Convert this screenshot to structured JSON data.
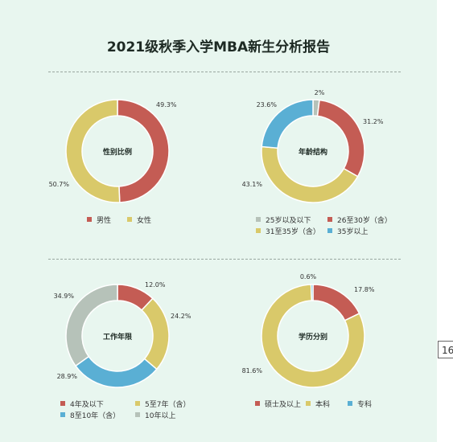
{
  "title": "2021级秋季入学MBA新生分析报告",
  "side_box_text": "16",
  "chart_data": [
    {
      "type": "pie",
      "title": "性别比例",
      "slices": [
        {
          "label": "男性",
          "value": 49.3,
          "display": "49.3%",
          "color": "#c45c54"
        },
        {
          "label": "女性",
          "value": 50.7,
          "display": "50.7%",
          "color": "#d9c96a"
        }
      ]
    },
    {
      "type": "pie",
      "title": "年龄结构",
      "slices": [
        {
          "label": "25岁以及以下",
          "value": 2,
          "display": "2%",
          "color": "#b6c2b9"
        },
        {
          "label": "26至30岁（含）",
          "value": 31.2,
          "display": "31.2%",
          "color": "#c45c54"
        },
        {
          "label": "31至35岁（含）",
          "value": 43.1,
          "display": "43.1%",
          "color": "#d9c96a"
        },
        {
          "label": "35岁以上",
          "value": 23.6,
          "display": "23.6%",
          "color": "#5aafd4"
        }
      ]
    },
    {
      "type": "pie",
      "title": "工作年限",
      "slices": [
        {
          "label": "4年及以下",
          "value": 12.0,
          "display": "12.0%",
          "color": "#c45c54"
        },
        {
          "label": "5至7年（含）",
          "value": 24.2,
          "display": "24.2%",
          "color": "#d9c96a"
        },
        {
          "label": "8至10年（含）",
          "value": 28.9,
          "display": "28.9%",
          "color": "#5aafd4"
        },
        {
          "label": "10年以上",
          "value": 34.9,
          "display": "34.9%",
          "color": "#b6c2b9"
        }
      ]
    },
    {
      "type": "pie",
      "title": "学历分别",
      "slices": [
        {
          "label": "硕士及以上",
          "value": 17.8,
          "display": "17.8%",
          "color": "#c45c54"
        },
        {
          "label": "本科",
          "value": 81.6,
          "display": "81.6%",
          "color": "#d9c96a"
        },
        {
          "label": "专科",
          "value": 0.6,
          "display": "0.6%",
          "color": "#5aafd4"
        }
      ]
    }
  ]
}
